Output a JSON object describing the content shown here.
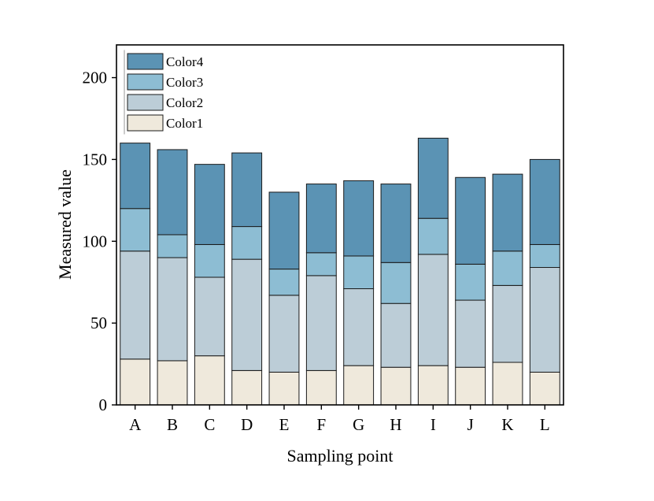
{
  "chart_data": {
    "type": "bar",
    "stacked": true,
    "categories": [
      "A",
      "B",
      "C",
      "D",
      "E",
      "F",
      "G",
      "H",
      "I",
      "J",
      "K",
      "L"
    ],
    "series": [
      {
        "name": "Color1",
        "color": "#efe9dc",
        "values": [
          28,
          27,
          30,
          21,
          20,
          21,
          24,
          23,
          24,
          23,
          26,
          20
        ]
      },
      {
        "name": "Color2",
        "color": "#bccdd7",
        "values": [
          66,
          63,
          48,
          68,
          47,
          58,
          47,
          39,
          68,
          41,
          47,
          64
        ]
      },
      {
        "name": "Color3",
        "color": "#8dbdd3",
        "values": [
          26,
          14,
          20,
          20,
          16,
          14,
          20,
          25,
          22,
          22,
          21,
          14
        ]
      },
      {
        "name": "Color4",
        "color": "#5b93b4",
        "values": [
          40,
          52,
          49,
          45,
          47,
          42,
          46,
          48,
          49,
          53,
          47,
          52
        ]
      }
    ],
    "xlabel": "Sampling point",
    "ylabel": "Measured value",
    "ylim": [
      0,
      220
    ],
    "yticks": [
      0,
      50,
      100,
      150,
      200
    ],
    "legend": {
      "position": "top-left",
      "order": [
        "Color4",
        "Color3",
        "Color2",
        "Color1"
      ]
    },
    "grid": false
  }
}
